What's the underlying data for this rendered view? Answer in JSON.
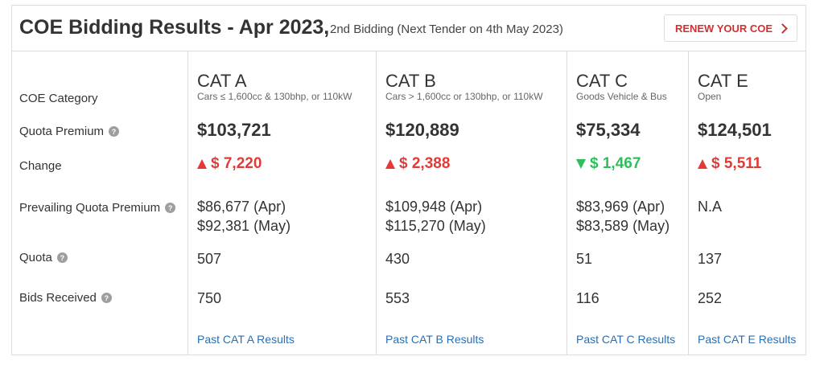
{
  "header": {
    "title": "COE Bidding Results - Apr 2023,",
    "subtitle": "2nd Bidding (Next Tender on 4th May 2023)",
    "renew_label": "RENEW YOUR COE",
    "renew_icon": "chevron-right-icon"
  },
  "labels": {
    "category": "COE Category",
    "quota_premium": "Quota Premium",
    "change": "Change",
    "prevailing": "Prevailing Quota Premium",
    "quota": "Quota",
    "bids": "Bids Received",
    "help_glyph": "?"
  },
  "categories": [
    {
      "name": "CAT A",
      "desc": "Cars ≤ 1,600cc & 130bhp, or 110kW",
      "premium": "$103,721",
      "change": "$ 7,220",
      "direction": "up",
      "prev_apr": "$86,677 (Apr)",
      "prev_may": "$92,381 (May)",
      "quota": "507",
      "bids": "750",
      "link": "Past CAT A Results"
    },
    {
      "name": "CAT B",
      "desc": "Cars > 1,600cc or 130bhp, or 110kW",
      "premium": "$120,889",
      "change": "$ 2,388",
      "direction": "up",
      "prev_apr": "$109,948 (Apr)",
      "prev_may": "$115,270 (May)",
      "quota": "430",
      "bids": "553",
      "link": "Past CAT B Results"
    },
    {
      "name": "CAT C",
      "desc": "Goods Vehicle & Bus",
      "premium": "$75,334",
      "change": "$ 1,467",
      "direction": "down",
      "prev_apr": "$83,969 (Apr)",
      "prev_may": "$83,589 (May)",
      "quota": "51",
      "bids": "116",
      "link": "Past CAT C Results"
    },
    {
      "name": "CAT E",
      "desc": "Open",
      "premium": "$124,501",
      "change": "$ 5,511",
      "direction": "up",
      "prev_apr": "N.A",
      "prev_may": "",
      "quota": "137",
      "bids": "252",
      "link": "Past CAT E Results"
    }
  ],
  "colors": {
    "accent_red": "#d32f2f",
    "increase": "#e53935",
    "decrease": "#2ebf5a",
    "link": "#2a6fb0"
  }
}
